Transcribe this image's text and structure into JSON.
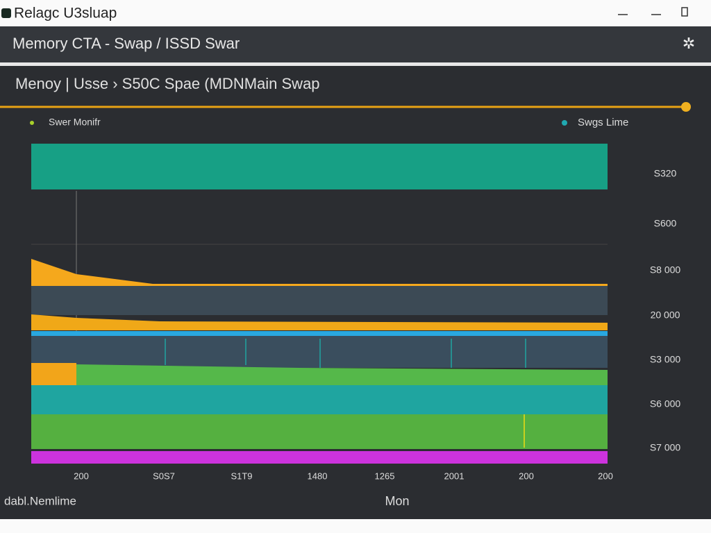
{
  "window": {
    "title": "Relagc U3sluap"
  },
  "header": {
    "title": "Memory CTA - Swap /  ISSD Swar"
  },
  "panel": {
    "title": "Menoy | Usse › S50C Spae  (MDNMain Swap",
    "legend": [
      "Swer Monifr",
      "Swgs Lime"
    ],
    "right_labels": [
      "S320",
      "S600",
      "S8 000",
      "20 000",
      "S3 000",
      "S6 000",
      "S7 000"
    ],
    "bottom_labels": [
      "200",
      "S0S7",
      "S1T9",
      "1480",
      "1265",
      "2001",
      "200",
      "200"
    ],
    "footer_left": "dabl.Nemlime",
    "footer_center": "Mon"
  }
}
